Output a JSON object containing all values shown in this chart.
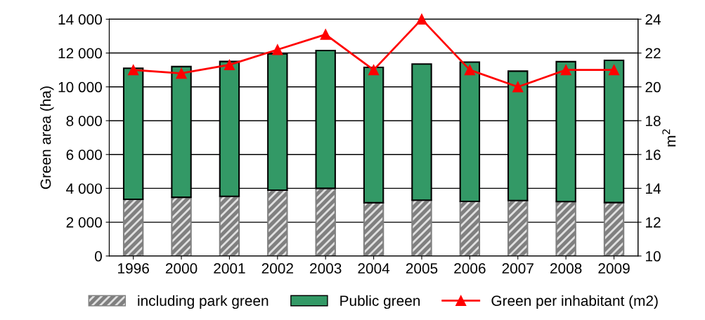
{
  "chart_data": {
    "type": "bar",
    "stacked": true,
    "ylabel": "Green area (ha)",
    "y2label": "m$^{2}$",
    "categories": [
      "1996",
      "2000",
      "2001",
      "2002",
      "2003",
      "2004",
      "2005",
      "2006",
      "2007",
      "2008",
      "2009"
    ],
    "series": [
      {
        "name": "including park green",
        "color": "#808080",
        "values": [
          3350,
          3470,
          3530,
          3890,
          4000,
          3150,
          3300,
          3230,
          3280,
          3220,
          3160
        ]
      },
      {
        "name": "Public green",
        "color": "#339966",
        "values": [
          7750,
          7730,
          7970,
          8060,
          8150,
          8000,
          8050,
          8230,
          7650,
          8270,
          8410
        ]
      },
      {
        "name": "Green per inhabitant (m2)",
        "type": "line",
        "axis": "y2",
        "color": "#ff0000",
        "marker": "triangle",
        "values": [
          21,
          20.8,
          21.3,
          22.2,
          23.1,
          21,
          24,
          21,
          20,
          21,
          21
        ]
      }
    ],
    "ylim": [
      0,
      14000
    ],
    "yticks": [
      {
        "value": 0,
        "label": "0"
      },
      {
        "value": 2000,
        "label": "2 000"
      },
      {
        "value": 4000,
        "label": "4 000"
      },
      {
        "value": 6000,
        "label": "6 000"
      },
      {
        "value": 8000,
        "label": "8 000"
      },
      {
        "value": 10000,
        "label": "10 000"
      },
      {
        "value": 12000,
        "label": "12 000"
      },
      {
        "value": 14000,
        "label": "14 000"
      }
    ],
    "y2lim": [
      10,
      24
    ],
    "y2ticks": [
      10,
      12,
      14,
      16,
      18,
      20,
      22,
      24
    ],
    "grid": "y",
    "legend": "bottom"
  }
}
